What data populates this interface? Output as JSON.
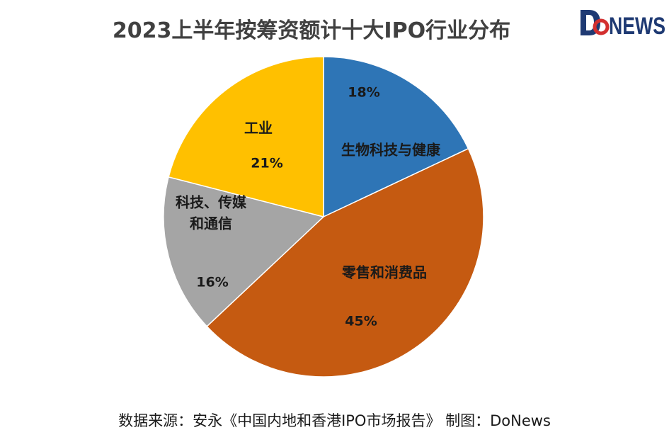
{
  "brand": {
    "logo_text_d": "D",
    "logo_text_o": "o",
    "logo_text_rest": "NEWS",
    "logo_color": "#1f3a73",
    "logo_accent": "#d32f2f"
  },
  "footer": {
    "source": "数据来源：安永《中国内地和香港IPO市场报告》  制图：DoNews"
  },
  "chart_data": {
    "type": "pie",
    "title": "2023上半年按筹资额计十大IPO行业分布",
    "start": "12 o'clock, clockwise",
    "slices": [
      {
        "label": "生物科技与健康",
        "value": 18,
        "pct_text": "18%",
        "color": "#2e75b6"
      },
      {
        "label": "零售和消费品",
        "value": 45,
        "pct_text": "45%",
        "color": "#c55a11"
      },
      {
        "label": "科技、传媒和通信",
        "label_lines": [
          "科技、传媒",
          "和通信"
        ],
        "value": 16,
        "pct_text": "16%",
        "color": "#a5a5a5"
      },
      {
        "label": "工业",
        "value": 21,
        "pct_text": "21%",
        "color": "#ffc000"
      }
    ]
  }
}
